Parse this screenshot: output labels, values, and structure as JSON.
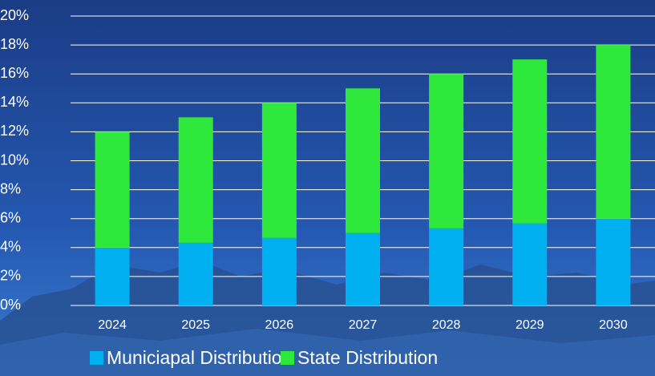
{
  "chart_data": {
    "type": "stacked_bar",
    "categories": [
      "2024",
      "2025",
      "2026",
      "2027",
      "2028",
      "2029",
      "2030"
    ],
    "series": [
      {
        "name": "Municiapal Distribution",
        "color": "#00b0f0",
        "values": [
          4,
          4.33,
          4.67,
          5,
          5.33,
          5.67,
          6
        ]
      },
      {
        "name": "State Distribution",
        "color": "#2ee83c",
        "values": [
          8,
          8.67,
          9.33,
          10,
          10.67,
          11.33,
          12
        ]
      }
    ],
    "ylim": [
      0,
      20
    ],
    "yticks": [
      {
        "value": 0,
        "label": "0%"
      },
      {
        "value": 2,
        "label": "2%"
      },
      {
        "value": 4,
        "label": "4%"
      },
      {
        "value": 6,
        "label": "6%"
      },
      {
        "value": 8,
        "label": "8%"
      },
      {
        "value": 10,
        "label": "10%"
      },
      {
        "value": 12,
        "label": "12%"
      },
      {
        "value": 14,
        "label": "14%"
      },
      {
        "value": 16,
        "label": "16%"
      },
      {
        "value": 18,
        "label": "18%"
      },
      {
        "value": 20,
        "label": "20%"
      }
    ],
    "grid": true,
    "legend": "bottom"
  }
}
